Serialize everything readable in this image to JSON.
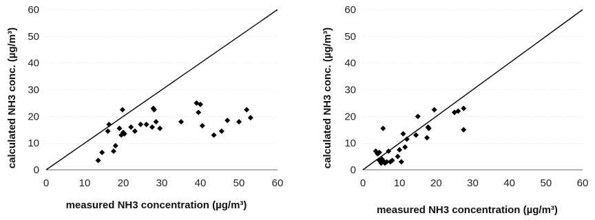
{
  "chart_data": [
    {
      "type": "scatter",
      "title": "",
      "xlabel": "measured NH3 concentration (µg/m³)",
      "ylabel": "calculated NH3 conc. (µg/m³)",
      "xlim": [
        0,
        60
      ],
      "ylim": [
        0,
        60
      ],
      "xticks": [
        "0",
        "10",
        "20",
        "30",
        "40",
        "50",
        "60"
      ],
      "yticks": [
        "0",
        "10",
        "20",
        "30",
        "40",
        "50",
        "60"
      ],
      "grid": true,
      "reference_line": {
        "from": [
          0,
          0
        ],
        "to": [
          60,
          60
        ]
      },
      "series": [
        {
          "marker": "diamond",
          "color": "#000000",
          "points": [
            [
              13.5,
              3.5
            ],
            [
              14.5,
              6.5
            ],
            [
              16,
              14.5
            ],
            [
              16.3,
              17
            ],
            [
              17.5,
              7
            ],
            [
              18,
              9
            ],
            [
              19,
              15.5
            ],
            [
              19.5,
              13
            ],
            [
              19.8,
              22.5
            ],
            [
              20,
              14
            ],
            [
              20.3,
              13.5
            ],
            [
              22,
              16
            ],
            [
              23,
              14.5
            ],
            [
              24.5,
              17
            ],
            [
              26,
              17
            ],
            [
              27.5,
              16
            ],
            [
              27.8,
              23
            ],
            [
              28,
              22.5
            ],
            [
              28.5,
              18
            ],
            [
              29.5,
              15.5
            ],
            [
              35,
              18
            ],
            [
              39,
              25
            ],
            [
              39.5,
              21.5
            ],
            [
              40,
              24.5
            ],
            [
              40.5,
              16.5
            ],
            [
              43.5,
              13
            ],
            [
              45.5,
              14.5
            ],
            [
              47,
              18.5
            ],
            [
              50,
              18
            ],
            [
              52,
              22.5
            ],
            [
              53,
              19.5
            ]
          ]
        }
      ]
    },
    {
      "type": "scatter",
      "title": "",
      "xlabel": "measured NH3 concentration (µg/m³)",
      "ylabel": "calculated NH3 conc. (µg/m³)",
      "xlim": [
        0,
        60
      ],
      "ylim": [
        0,
        60
      ],
      "xticks": [
        "0",
        "10",
        "20",
        "30",
        "40",
        "50",
        "60"
      ],
      "yticks": [
        "0",
        "10",
        "20",
        "30",
        "40",
        "50",
        "60"
      ],
      "grid": true,
      "reference_line": {
        "from": [
          0,
          0
        ],
        "to": [
          60,
          60
        ]
      },
      "series": [
        {
          "marker": "diamond",
          "color": "#000000",
          "points": [
            [
              3.5,
              7
            ],
            [
              4,
              6
            ],
            [
              4.5,
              6.5
            ],
            [
              4.5,
              3.5
            ],
            [
              5,
              3
            ],
            [
              5,
              2.5
            ],
            [
              5.2,
              4
            ],
            [
              5.5,
              15.5
            ],
            [
              5.8,
              3
            ],
            [
              6,
              2.5
            ],
            [
              6.5,
              3
            ],
            [
              7,
              7
            ],
            [
              7.5,
              3
            ],
            [
              8,
              3.5
            ],
            [
              9.5,
              5
            ],
            [
              10,
              7.5
            ],
            [
              10.5,
              3
            ],
            [
              11,
              13.5
            ],
            [
              11.5,
              8.5
            ],
            [
              12,
              11.5
            ],
            [
              14.5,
              13
            ],
            [
              15,
              20
            ],
            [
              17.5,
              12
            ],
            [
              17.8,
              16
            ],
            [
              18,
              15.5
            ],
            [
              19.5,
              22.5
            ],
            [
              25,
              21.5
            ],
            [
              26,
              22
            ],
            [
              27.5,
              23
            ],
            [
              27.5,
              15
            ]
          ]
        }
      ]
    }
  ]
}
